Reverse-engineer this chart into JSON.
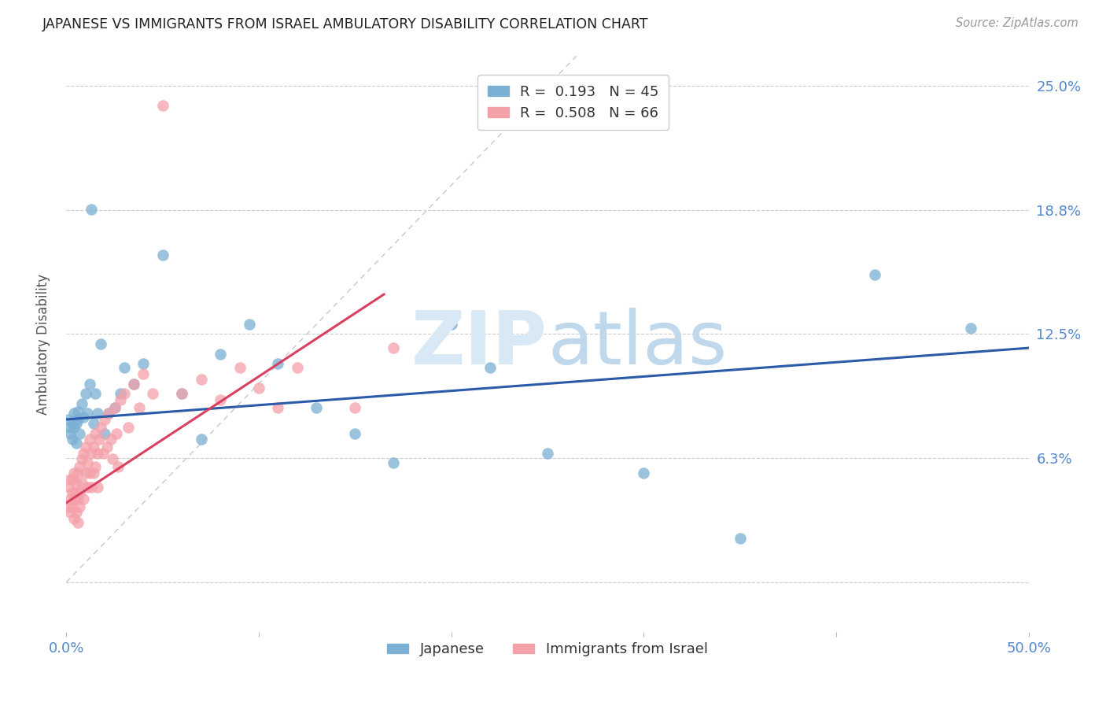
{
  "title": "JAPANESE VS IMMIGRANTS FROM ISRAEL AMBULATORY DISABILITY CORRELATION CHART",
  "source": "Source: ZipAtlas.com",
  "ylabel": "Ambulatory Disability",
  "xlim": [
    0.0,
    0.5
  ],
  "ylim": [
    -0.025,
    0.265
  ],
  "ytick_positions": [
    0.0,
    0.0625,
    0.125,
    0.1875,
    0.25
  ],
  "ytick_labels": [
    "",
    "6.3%",
    "12.5%",
    "18.8%",
    "25.0%"
  ],
  "xtick_positions": [
    0.0,
    0.1,
    0.2,
    0.3,
    0.4,
    0.5
  ],
  "xtick_labels": [
    "0.0%",
    "",
    "",
    "",
    "",
    "50.0%"
  ],
  "japanese_color": "#7BAFD4",
  "israel_color": "#F4A0A8",
  "blue_line_color": "#2B5BA8",
  "pink_line_color": "#D94060",
  "diagonal_color": "#C8C8C8",
  "background_color": "#FFFFFF",
  "tick_color": "#5588CC",
  "watermark_color": "#D8E8F5",
  "japanese_x": [
    0.001,
    0.002,
    0.002,
    0.003,
    0.003,
    0.004,
    0.004,
    0.005,
    0.005,
    0.006,
    0.006,
    0.007,
    0.008,
    0.009,
    0.01,
    0.011,
    0.012,
    0.013,
    0.014,
    0.015,
    0.016,
    0.018,
    0.02,
    0.022,
    0.025,
    0.028,
    0.03,
    0.035,
    0.04,
    0.05,
    0.06,
    0.07,
    0.08,
    0.095,
    0.11,
    0.13,
    0.15,
    0.17,
    0.2,
    0.22,
    0.25,
    0.3,
    0.35,
    0.42,
    0.47
  ],
  "japanese_y": [
    0.082,
    0.075,
    0.078,
    0.072,
    0.08,
    0.078,
    0.085,
    0.07,
    0.08,
    0.082,
    0.086,
    0.075,
    0.09,
    0.083,
    0.095,
    0.085,
    0.1,
    0.188,
    0.08,
    0.095,
    0.085,
    0.12,
    0.075,
    0.085,
    0.088,
    0.095,
    0.108,
    0.1,
    0.11,
    0.165,
    0.095,
    0.072,
    0.115,
    0.13,
    0.11,
    0.088,
    0.075,
    0.06,
    0.13,
    0.108,
    0.065,
    0.055,
    0.022,
    0.155,
    0.128
  ],
  "israel_x": [
    0.001,
    0.001,
    0.002,
    0.002,
    0.002,
    0.003,
    0.003,
    0.003,
    0.004,
    0.004,
    0.004,
    0.005,
    0.005,
    0.005,
    0.006,
    0.006,
    0.006,
    0.007,
    0.007,
    0.007,
    0.008,
    0.008,
    0.009,
    0.009,
    0.01,
    0.01,
    0.011,
    0.011,
    0.012,
    0.012,
    0.013,
    0.013,
    0.014,
    0.014,
    0.015,
    0.015,
    0.016,
    0.016,
    0.017,
    0.018,
    0.019,
    0.02,
    0.021,
    0.022,
    0.023,
    0.024,
    0.025,
    0.026,
    0.027,
    0.028,
    0.03,
    0.032,
    0.035,
    0.038,
    0.04,
    0.045,
    0.05,
    0.06,
    0.07,
    0.08,
    0.09,
    0.1,
    0.11,
    0.12,
    0.15,
    0.17
  ],
  "israel_y": [
    0.038,
    0.048,
    0.042,
    0.052,
    0.035,
    0.045,
    0.038,
    0.052,
    0.042,
    0.055,
    0.032,
    0.045,
    0.05,
    0.035,
    0.055,
    0.042,
    0.03,
    0.058,
    0.045,
    0.038,
    0.062,
    0.05,
    0.065,
    0.042,
    0.068,
    0.055,
    0.06,
    0.048,
    0.072,
    0.055,
    0.065,
    0.048,
    0.068,
    0.055,
    0.075,
    0.058,
    0.065,
    0.048,
    0.072,
    0.078,
    0.065,
    0.082,
    0.068,
    0.085,
    0.072,
    0.062,
    0.088,
    0.075,
    0.058,
    0.092,
    0.095,
    0.078,
    0.1,
    0.088,
    0.105,
    0.095,
    0.24,
    0.095,
    0.102,
    0.092,
    0.108,
    0.098,
    0.088,
    0.108,
    0.088,
    0.118
  ],
  "blue_line_x": [
    0.0,
    0.5
  ],
  "blue_line_y": [
    0.082,
    0.118
  ],
  "pink_line_x": [
    0.0,
    0.165
  ],
  "pink_line_y": [
    0.04,
    0.145
  ]
}
